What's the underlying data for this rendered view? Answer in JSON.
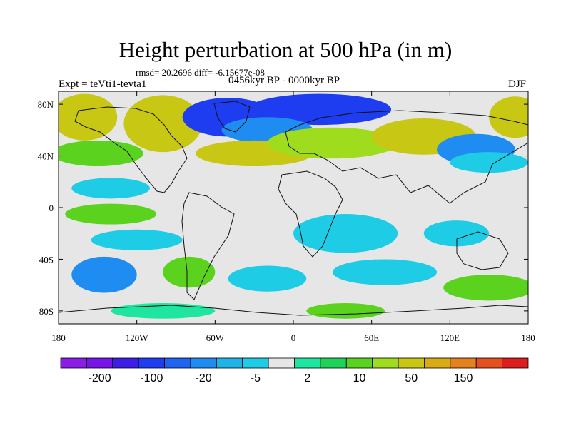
{
  "chart_data": {
    "type": "heatmap",
    "title": "Height perturbation at 500 hPa (in m)",
    "stats_line": "rmsd= 20.2696  diff= -6.15677e-08",
    "period": "0456kyr BP - 0000kyr BP",
    "left_label": "Expt = teVti1-tevta1",
    "right_label": "DJF",
    "xlim": [
      -180,
      180
    ],
    "ylim": [
      -90,
      90
    ],
    "x_ticks": [
      {
        "value": -180,
        "label": "180"
      },
      {
        "value": -120,
        "label": "120W"
      },
      {
        "value": -60,
        "label": "60W"
      },
      {
        "value": 0,
        "label": "0"
      },
      {
        "value": 60,
        "label": "60E"
      },
      {
        "value": 120,
        "label": "120E"
      },
      {
        "value": 180,
        "label": "180"
      }
    ],
    "y_ticks": [
      {
        "value": 80,
        "label": "80N"
      },
      {
        "value": 40,
        "label": "40N"
      },
      {
        "value": 0,
        "label": "0"
      },
      {
        "value": -40,
        "label": "40S"
      },
      {
        "value": -80,
        "label": "80S"
      }
    ],
    "colorbar": {
      "colors": [
        "#8a1ee6",
        "#7714ea",
        "#3c1ee6",
        "#1e3cf0",
        "#1e64f0",
        "#1e8cf0",
        "#1eb4e6",
        "#1ecce6",
        "#e6e6e6",
        "#1ee6a0",
        "#1ed25a",
        "#5ad21e",
        "#a0dc1e",
        "#c8c814",
        "#dcaa14",
        "#e6821e",
        "#e6501e",
        "#dc1e1e"
      ],
      "labels": [
        {
          "after_box": 1,
          "text": "-200"
        },
        {
          "after_box": 3,
          "text": "-100"
        },
        {
          "after_box": 5,
          "text": "-20"
        },
        {
          "after_box": 7,
          "text": "-5"
        },
        {
          "after_box": 9,
          "text": "2"
        },
        {
          "after_box": 11,
          "text": "10"
        },
        {
          "after_box": 13,
          "text": "50"
        },
        {
          "after_box": 15,
          "text": "150"
        }
      ]
    },
    "anomaly_regions": [
      {
        "lon": -100,
        "lat": 65,
        "rlon": 30,
        "rlat": 22,
        "value": 50
      },
      {
        "lon": -160,
        "lat": 70,
        "rlon": 25,
        "rlat": 18,
        "value": 50
      },
      {
        "lon": 170,
        "lat": 70,
        "rlon": 20,
        "rlat": 16,
        "value": 50
      },
      {
        "lon": -150,
        "lat": 42,
        "rlon": 35,
        "rlat": 10,
        "value": 10
      },
      {
        "lon": -50,
        "lat": 70,
        "rlon": 35,
        "rlat": 15,
        "value": -100
      },
      {
        "lon": 20,
        "lat": 76,
        "rlon": 55,
        "rlat": 12,
        "value": -100
      },
      {
        "lon": -20,
        "lat": 60,
        "rlon": 35,
        "rlat": 10,
        "value": -20
      },
      {
        "lon": -30,
        "lat": 42,
        "rlon": 45,
        "rlat": 10,
        "value": 50
      },
      {
        "lon": 30,
        "lat": 50,
        "rlon": 50,
        "rlat": 12,
        "value": 20
      },
      {
        "lon": 100,
        "lat": 55,
        "rlon": 40,
        "rlat": 14,
        "value": 50
      },
      {
        "lon": 140,
        "lat": 45,
        "rlon": 30,
        "rlat": 12,
        "value": -20
      },
      {
        "lon": 150,
        "lat": 35,
        "rlon": 30,
        "rlat": 8,
        "value": -5
      },
      {
        "lon": -140,
        "lat": 15,
        "rlon": 30,
        "rlat": 8,
        "value": -5
      },
      {
        "lon": -140,
        "lat": -5,
        "rlon": 35,
        "rlat": 8,
        "value": 10
      },
      {
        "lon": -120,
        "lat": -25,
        "rlon": 35,
        "rlat": 8,
        "value": -5
      },
      {
        "lon": -145,
        "lat": -52,
        "rlon": 25,
        "rlat": 14,
        "value": -20
      },
      {
        "lon": -80,
        "lat": -50,
        "rlon": 20,
        "rlat": 12,
        "value": 10
      },
      {
        "lon": -20,
        "lat": -55,
        "rlon": 30,
        "rlat": 10,
        "value": -5
      },
      {
        "lon": 40,
        "lat": -20,
        "rlon": 40,
        "rlat": 15,
        "value": -5
      },
      {
        "lon": 70,
        "lat": -50,
        "rlon": 40,
        "rlat": 10,
        "value": -5
      },
      {
        "lon": 125,
        "lat": -20,
        "rlon": 25,
        "rlat": 10,
        "value": -5
      },
      {
        "lon": 150,
        "lat": -62,
        "rlon": 35,
        "rlat": 10,
        "value": 10
      },
      {
        "lon": 40,
        "lat": -80,
        "rlon": 30,
        "rlat": 6,
        "value": 10
      },
      {
        "lon": -100,
        "lat": -80,
        "rlon": 40,
        "rlat": 6,
        "value": 2
      }
    ]
  }
}
